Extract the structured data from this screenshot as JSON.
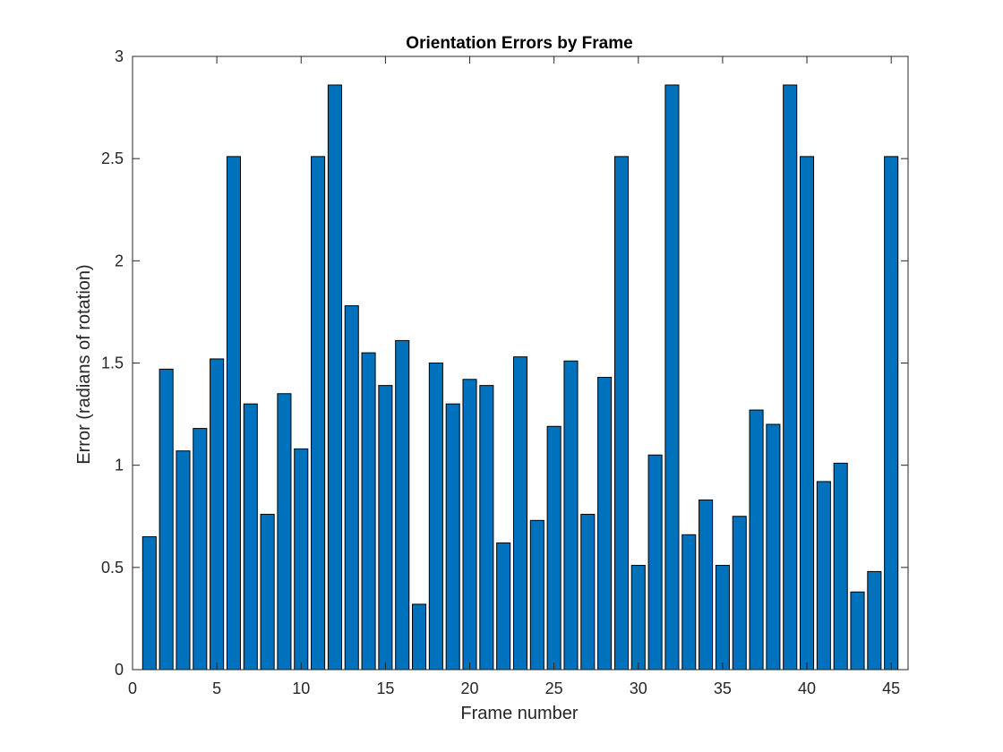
{
  "chart_data": {
    "type": "bar",
    "title": "Orientation Errors by Frame",
    "xlabel": "Frame number",
    "ylabel": "Error (radians of rotation)",
    "xlim": [
      0,
      46
    ],
    "ylim": [
      0,
      3
    ],
    "xticks": [
      0,
      5,
      10,
      15,
      20,
      25,
      30,
      35,
      40,
      45
    ],
    "yticks": [
      0,
      0.5,
      1,
      1.5,
      2,
      2.5,
      3
    ],
    "grid": false,
    "bar_color": "#0072BD",
    "bar_edge_color": "#000000",
    "x": [
      1,
      2,
      3,
      4,
      5,
      6,
      7,
      8,
      9,
      10,
      11,
      12,
      13,
      14,
      15,
      16,
      17,
      18,
      19,
      20,
      21,
      22,
      23,
      24,
      25,
      26,
      27,
      28,
      29,
      30,
      31,
      32,
      33,
      34,
      35,
      36,
      37,
      38,
      39,
      40,
      41,
      42,
      43,
      44,
      45
    ],
    "values": [
      0.65,
      1.47,
      1.07,
      1.18,
      1.52,
      2.51,
      1.3,
      0.76,
      1.35,
      1.08,
      2.51,
      2.86,
      1.78,
      1.55,
      1.39,
      1.61,
      0.32,
      1.5,
      1.3,
      1.42,
      1.39,
      0.62,
      1.53,
      0.73,
      1.19,
      1.51,
      0.76,
      1.43,
      2.51,
      0.51,
      1.05,
      2.86,
      0.66,
      0.83,
      0.51,
      0.75,
      1.27,
      1.2,
      2.86,
      2.51,
      0.92,
      1.01,
      0.38,
      0.48,
      2.51
    ]
  }
}
